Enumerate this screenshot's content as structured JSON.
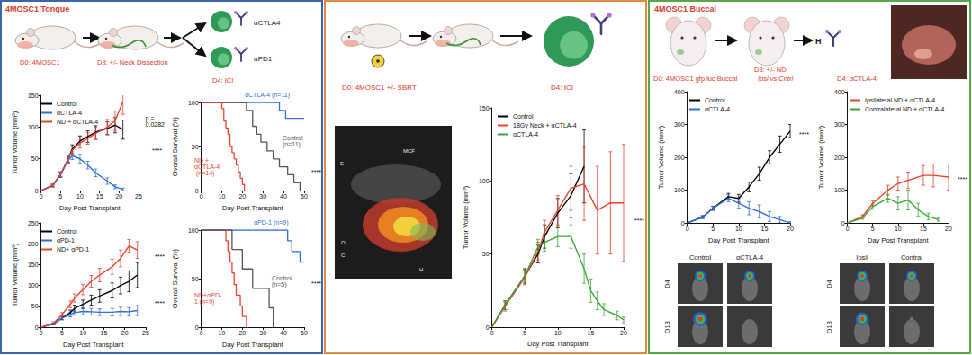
{
  "chart_data": [
    {
      "type": "line",
      "x_label": "Day Post Transplant",
      "y_label": "Tumor Volume (mm³)",
      "xlim": [
        0,
        25
      ],
      "xticks": [
        0,
        5,
        10,
        15,
        20,
        25
      ],
      "ylim": [
        0,
        150
      ],
      "yticks": [
        0,
        50,
        100,
        150
      ],
      "grid": false,
      "legend": "upper left",
      "annotations": [
        "p = 0.0282",
        "****"
      ],
      "series": [
        {
          "name": "Control",
          "color": "#000000",
          "x": [
            0,
            3,
            5,
            7,
            8,
            10,
            12,
            14,
            17,
            19,
            21
          ],
          "values": [
            0,
            8,
            25,
            50,
            65,
            78,
            85,
            92,
            98,
            103,
            96
          ],
          "errors": [
            0,
            2,
            4,
            6,
            7,
            8,
            9,
            10,
            10,
            12,
            15
          ]
        },
        {
          "name": "αCTLA-4",
          "color": "#2f6fd6",
          "x": [
            0,
            3,
            5,
            7,
            8,
            10,
            12,
            14,
            17,
            19,
            21
          ],
          "values": [
            0,
            8,
            25,
            48,
            55,
            50,
            40,
            28,
            15,
            6,
            2
          ],
          "errors": [
            0,
            2,
            4,
            5,
            6,
            7,
            6,
            6,
            5,
            3,
            2
          ]
        },
        {
          "name": "ND + αCTLA-4",
          "color": "#e8432e",
          "x": [
            0,
            3,
            5,
            7,
            8,
            10,
            12,
            14,
            17,
            19,
            21
          ],
          "values": [
            0,
            8,
            26,
            50,
            63,
            75,
            82,
            90,
            100,
            110,
            140
          ],
          "errors": [
            0,
            2,
            4,
            6,
            7,
            8,
            9,
            10,
            12,
            15,
            20
          ]
        }
      ]
    },
    {
      "type": "step",
      "y_label": "Overall Survival (%)",
      "x_label": "Day Post Transplant",
      "xlim": [
        0,
        50
      ],
      "xticks": [
        0,
        10,
        20,
        30,
        40,
        50
      ],
      "ylim": [
        0,
        100
      ],
      "yticks": [
        0,
        50,
        100
      ],
      "grid": false,
      "annotations": [
        "****"
      ],
      "series": [
        {
          "name": "αCTLA-4 (n=11)",
          "color": "#2f6fd6",
          "x": [
            0,
            38,
            41,
            50
          ],
          "values": [
            100,
            91,
            82,
            82
          ]
        },
        {
          "name": "Control (n=11)",
          "color": "#555555",
          "x": [
            0,
            22,
            25,
            27,
            29,
            32,
            35,
            38,
            42,
            45,
            48
          ],
          "values": [
            100,
            91,
            73,
            64,
            55,
            45,
            36,
            27,
            18,
            9,
            0
          ]
        },
        {
          "name": "ND + αCTLA-4 (n=14)",
          "color": "#e8432e",
          "x": [
            0,
            10,
            11,
            12,
            13,
            14,
            15,
            16,
            17,
            18,
            19,
            20,
            21
          ],
          "values": [
            100,
            93,
            79,
            71,
            64,
            50,
            43,
            36,
            29,
            21,
            14,
            7,
            0
          ]
        }
      ]
    },
    {
      "type": "line",
      "x_label": "Day Post Transplant",
      "y_label": "Tumor Volume (mm³)",
      "xlim": [
        0,
        25
      ],
      "xticks": [
        0,
        5,
        10,
        15,
        20,
        25
      ],
      "ylim": [
        0,
        250
      ],
      "yticks": [
        0,
        50,
        100,
        150,
        200,
        250
      ],
      "grid": false,
      "legend": "upper left",
      "annotations": [
        "****",
        "****"
      ],
      "series": [
        {
          "name": "Control",
          "color": "#000000",
          "x": [
            0,
            3,
            5,
            7,
            8,
            10,
            12,
            14,
            17,
            19,
            21,
            23
          ],
          "values": [
            0,
            8,
            22,
            35,
            45,
            55,
            65,
            75,
            88,
            100,
            110,
            125
          ],
          "errors": [
            0,
            2,
            4,
            6,
            8,
            10,
            12,
            15,
            18,
            20,
            25,
            30
          ]
        },
        {
          "name": "αPD-1",
          "color": "#2f6fd6",
          "x": [
            0,
            3,
            5,
            7,
            8,
            10,
            12,
            14,
            17,
            19,
            21,
            23
          ],
          "values": [
            0,
            8,
            22,
            30,
            35,
            38,
            37,
            36,
            36,
            38,
            37,
            40
          ],
          "errors": [
            0,
            2,
            4,
            5,
            6,
            8,
            8,
            8,
            9,
            10,
            10,
            12
          ]
        },
        {
          "name": "ND+ αPD-1",
          "color": "#e8432e",
          "x": [
            0,
            3,
            5,
            7,
            8,
            10,
            12,
            14,
            17,
            19,
            21,
            23
          ],
          "values": [
            0,
            10,
            30,
            55,
            70,
            90,
            110,
            125,
            145,
            165,
            195,
            185
          ],
          "errors": [
            0,
            3,
            5,
            8,
            10,
            12,
            14,
            16,
            18,
            20,
            15,
            20
          ]
        }
      ]
    },
    {
      "type": "step",
      "y_label": "Overall Survival (%)",
      "x_label": "Day Post Transplant",
      "xlim": [
        0,
        50
      ],
      "xticks": [
        0,
        10,
        20,
        30,
        40,
        50
      ],
      "ylim": [
        0,
        100
      ],
      "yticks": [
        0,
        50,
        100
      ],
      "grid": false,
      "annotations": [
        "****"
      ],
      "series": [
        {
          "name": "αPD-1 (n=9)",
          "color": "#2f6fd6",
          "x": [
            0,
            42,
            44,
            48,
            50
          ],
          "values": [
            100,
            89,
            78,
            67,
            67
          ]
        },
        {
          "name": "ND+αPD-1 (n=9)",
          "color": "#e8432e",
          "x": [
            0,
            12,
            13,
            14,
            15,
            16,
            17,
            19,
            20,
            22
          ],
          "values": [
            100,
            89,
            78,
            67,
            56,
            44,
            33,
            22,
            11,
            0
          ]
        },
        {
          "name": "Control (n=5)",
          "color": "#555555",
          "x": [
            0,
            15,
            20,
            25,
            33,
            35
          ],
          "values": [
            100,
            80,
            60,
            40,
            20,
            0
          ]
        }
      ]
    },
    {
      "type": "line",
      "x_label": "Day Post Transplant",
      "y_label": "Tumor Volume (mm³)",
      "xlim": [
        0,
        20
      ],
      "xticks": [
        0,
        5,
        10,
        15,
        20
      ],
      "ylim": [
        0,
        150
      ],
      "yticks": [
        0,
        50,
        100,
        150
      ],
      "grid": false,
      "legend": "upper left",
      "annotations": [
        "****"
      ],
      "series": [
        {
          "name": "Control",
          "color": "#000000",
          "x": [
            0,
            2,
            5,
            7,
            8,
            10,
            12,
            14
          ],
          "values": [
            0,
            15,
            35,
            50,
            62,
            78,
            90,
            110
          ],
          "errors": [
            0,
            3,
            5,
            6,
            8,
            10,
            15,
            25
          ]
        },
        {
          "name": "18Gy Neck + αCTLA-4",
          "color": "#e8432e",
          "x": [
            0,
            2,
            5,
            7,
            8,
            10,
            12,
            14,
            16,
            18,
            20
          ],
          "values": [
            0,
            14,
            34,
            52,
            65,
            80,
            95,
            98,
            80,
            85,
            85
          ],
          "errors": [
            0,
            3,
            5,
            6,
            8,
            10,
            15,
            25,
            30,
            35,
            40
          ]
        },
        {
          "name": "αCTLA-4",
          "color": "#3aa835",
          "x": [
            0,
            2,
            5,
            7,
            8,
            10,
            12,
            14,
            15,
            16,
            17,
            19,
            20
          ],
          "values": [
            0,
            15,
            35,
            55,
            58,
            62,
            62,
            40,
            25,
            18,
            12,
            8,
            5
          ],
          "errors": [
            0,
            3,
            4,
            5,
            6,
            7,
            8,
            10,
            8,
            6,
            4,
            3,
            2
          ]
        }
      ]
    },
    {
      "type": "line",
      "x_label": "Day Post Transplant",
      "y_label": "Tumor Volume (mm³)",
      "xlim": [
        0,
        20
      ],
      "xticks": [
        0,
        5,
        10,
        15,
        20
      ],
      "ylim": [
        0,
        400
      ],
      "yticks": [
        0,
        100,
        200,
        300,
        400
      ],
      "grid": false,
      "legend": "upper left",
      "annotations": [
        "****"
      ],
      "series": [
        {
          "name": "Control",
          "color": "#000000",
          "x": [
            0,
            3,
            5,
            8,
            10,
            12,
            14,
            16,
            18,
            20
          ],
          "values": [
            0,
            18,
            45,
            80,
            75,
            110,
            150,
            200,
            240,
            280
          ],
          "errors": [
            0,
            4,
            6,
            10,
            12,
            15,
            20,
            20,
            25,
            20
          ]
        },
        {
          "name": "αCTLA-4",
          "color": "#2f6fd6",
          "x": [
            0,
            3,
            5,
            8,
            10,
            12,
            14,
            16,
            18,
            20
          ],
          "values": [
            0,
            18,
            45,
            75,
            60,
            45,
            35,
            20,
            10,
            0
          ],
          "errors": [
            0,
            4,
            6,
            10,
            15,
            20,
            20,
            15,
            10,
            5
          ]
        }
      ]
    },
    {
      "type": "line",
      "x_label": "Day Post Transplant",
      "y_label": "Tumor Volume (mm³)",
      "xlim": [
        0,
        20
      ],
      "xticks": [
        0,
        5,
        10,
        15,
        20
      ],
      "ylim": [
        0,
        400
      ],
      "yticks": [
        0,
        100,
        200,
        300,
        400
      ],
      "grid": false,
      "legend": "upper left",
      "annotations": [
        "****"
      ],
      "series": [
        {
          "name": "Ipsilateral ND + αCTLA-4",
          "color": "#e8432e",
          "x": [
            0,
            3,
            5,
            8,
            10,
            12,
            15,
            17,
            20
          ],
          "values": [
            0,
            20,
            60,
            100,
            120,
            130,
            145,
            145,
            140
          ],
          "errors": [
            0,
            5,
            8,
            15,
            20,
            25,
            30,
            35,
            40
          ]
        },
        {
          "name": "Contralateral ND + αCTLA-4",
          "color": "#3aa835",
          "x": [
            0,
            3,
            5,
            8,
            10,
            12,
            14,
            16,
            18
          ],
          "values": [
            0,
            15,
            50,
            75,
            60,
            70,
            40,
            20,
            10
          ],
          "errors": [
            0,
            4,
            8,
            12,
            20,
            30,
            20,
            10,
            5
          ]
        }
      ]
    }
  ],
  "diagram": {
    "panels": [
      {
        "title": "4MOSC1 Tongue",
        "steps": [
          "D0: 4MOSC1",
          "D3: +/- Neck Dissection",
          "D4: ICI"
        ],
        "antibodies": [
          "αCTLA4",
          "αPD1"
        ]
      },
      {
        "steps": [
          "D0: 4MOSC1 +/- SBRT",
          "D4: ICI"
        ],
        "image_labels": [
          "MCF",
          "E",
          "O",
          "C",
          "H"
        ]
      },
      {
        "title": "4MOSC1 Buccal",
        "steps": [
          "D0: 4MOSC1 gfp luc Buccal",
          "D3: +/- ND",
          "D4: αCTLA-4"
        ],
        "step_note": "Ipsl vs Cntrl",
        "photo_label": "H",
        "imaging": [
          {
            "columns": [
              "Control",
              "αCTLA-4"
            ],
            "rows": [
              "D4",
              "D13"
            ]
          },
          {
            "columns": [
              "Ipsil",
              "Contral"
            ],
            "rows": [
              "D4",
              "D13"
            ]
          }
        ]
      }
    ]
  }
}
